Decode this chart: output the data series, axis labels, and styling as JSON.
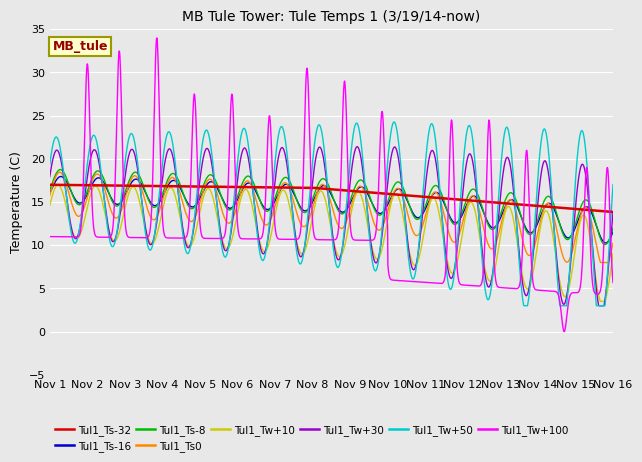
{
  "title": "MB Tule Tower: Tule Temps 1 (3/19/14-now)",
  "ylabel": "Temperature (C)",
  "xlim": [
    0,
    15
  ],
  "ylim": [
    -5,
    35
  ],
  "yticks": [
    -5,
    0,
    5,
    10,
    15,
    20,
    25,
    30,
    35
  ],
  "xtick_labels": [
    "Nov 1",
    "Nov 2",
    "Nov 3",
    "Nov 4",
    "Nov 5",
    "Nov 6",
    "Nov 7",
    "Nov 8",
    "Nov 9",
    "Nov 10",
    "Nov 11",
    "Nov 12",
    "Nov 13",
    "Nov 14",
    "Nov 15",
    "Nov 16"
  ],
  "xtick_positions": [
    0,
    1,
    2,
    3,
    4,
    5,
    6,
    7,
    8,
    9,
    10,
    11,
    12,
    13,
    14,
    15
  ],
  "background_color": "#e8e8e8",
  "annotation_label": "MB_tule",
  "annotation_color": "#990000",
  "annotation_bg": "#ffffcc",
  "annotation_border": "#999900",
  "series": [
    {
      "label": "Tul1_Ts-32",
      "color": "#dd0000",
      "lw": 1.8,
      "zorder": 5
    },
    {
      "label": "Tul1_Ts-16",
      "color": "#0000cc",
      "lw": 1.0,
      "zorder": 4
    },
    {
      "label": "Tul1_Ts-8",
      "color": "#00bb00",
      "lw": 1.0,
      "zorder": 4
    },
    {
      "label": "Tul1_Ts0",
      "color": "#ff8800",
      "lw": 1.0,
      "zorder": 4
    },
    {
      "label": "Tul1_Tw+10",
      "color": "#cccc00",
      "lw": 1.0,
      "zorder": 4
    },
    {
      "label": "Tul1_Tw+30",
      "color": "#9900cc",
      "lw": 1.0,
      "zorder": 4
    },
    {
      "label": "Tul1_Tw+50",
      "color": "#00cccc",
      "lw": 1.0,
      "zorder": 4
    },
    {
      "label": "Tul1_Tw+100",
      "color": "#ff00ff",
      "lw": 1.0,
      "zorder": 6
    }
  ]
}
